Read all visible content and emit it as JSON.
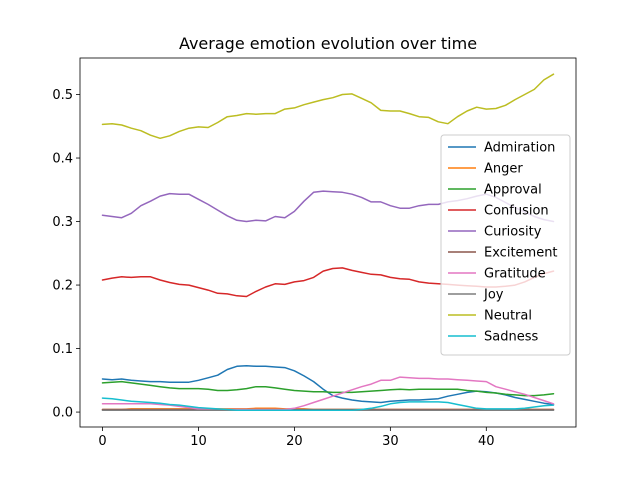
{
  "chart_data": {
    "type": "line",
    "title": "Average emotion evolution over time",
    "xlabel": "",
    "ylabel": "",
    "xlim": [
      -2.35,
      49.35
    ],
    "ylim": [
      -0.0235,
      0.5575
    ],
    "xticks": [
      0,
      10,
      20,
      30,
      40
    ],
    "yticks": [
      0.0,
      0.1,
      0.2,
      0.3,
      0.4,
      0.5
    ],
    "ytick_labels": [
      "0.0",
      "0.1",
      "0.2",
      "0.3",
      "0.4",
      "0.5"
    ],
    "grid": false,
    "legend_position": "center-right",
    "x": [
      0,
      1,
      2,
      3,
      4,
      5,
      6,
      7,
      8,
      9,
      10,
      11,
      12,
      13,
      14,
      15,
      16,
      17,
      18,
      19,
      20,
      21,
      22,
      23,
      24,
      25,
      26,
      27,
      28,
      29,
      30,
      31,
      32,
      33,
      34,
      35,
      36,
      37,
      38,
      39,
      40,
      41,
      42,
      43,
      44,
      45,
      46,
      47
    ],
    "series": [
      {
        "name": "Admiration",
        "color": "#1f77b4",
        "values": [
          0.052,
          0.051,
          0.052,
          0.05,
          0.049,
          0.048,
          0.048,
          0.047,
          0.047,
          0.047,
          0.05,
          0.054,
          0.058,
          0.067,
          0.072,
          0.073,
          0.072,
          0.072,
          0.071,
          0.07,
          0.065,
          0.057,
          0.048,
          0.036,
          0.026,
          0.022,
          0.019,
          0.017,
          0.016,
          0.015,
          0.017,
          0.018,
          0.019,
          0.019,
          0.02,
          0.021,
          0.025,
          0.028,
          0.031,
          0.033,
          0.032,
          0.03,
          0.027,
          0.023,
          0.02,
          0.017,
          0.014,
          0.012
        ]
      },
      {
        "name": "Anger",
        "color": "#ff7f0e",
        "values": [
          0.004,
          0.004,
          0.004,
          0.005,
          0.005,
          0.005,
          0.005,
          0.005,
          0.005,
          0.005,
          0.005,
          0.005,
          0.005,
          0.005,
          0.005,
          0.005,
          0.006,
          0.006,
          0.006,
          0.005,
          0.005,
          0.005,
          0.004,
          0.004,
          0.004,
          0.004,
          0.004,
          0.004,
          0.004,
          0.004,
          0.004,
          0.004,
          0.004,
          0.004,
          0.004,
          0.004,
          0.004,
          0.004,
          0.004,
          0.004,
          0.004,
          0.004,
          0.004,
          0.004,
          0.004,
          0.004,
          0.004,
          0.004
        ]
      },
      {
        "name": "Approval",
        "color": "#2ca02c",
        "values": [
          0.046,
          0.047,
          0.048,
          0.046,
          0.044,
          0.042,
          0.04,
          0.038,
          0.037,
          0.037,
          0.037,
          0.036,
          0.034,
          0.034,
          0.035,
          0.037,
          0.04,
          0.04,
          0.038,
          0.036,
          0.034,
          0.033,
          0.032,
          0.032,
          0.031,
          0.031,
          0.031,
          0.032,
          0.033,
          0.034,
          0.035,
          0.036,
          0.035,
          0.036,
          0.036,
          0.036,
          0.036,
          0.036,
          0.034,
          0.033,
          0.031,
          0.03,
          0.028,
          0.027,
          0.026,
          0.026,
          0.027,
          0.029
        ]
      },
      {
        "name": "Confusion",
        "color": "#d62728",
        "values": [
          0.208,
          0.211,
          0.213,
          0.212,
          0.213,
          0.213,
          0.208,
          0.204,
          0.201,
          0.2,
          0.196,
          0.192,
          0.187,
          0.186,
          0.183,
          0.182,
          0.19,
          0.197,
          0.202,
          0.201,
          0.205,
          0.207,
          0.212,
          0.222,
          0.226,
          0.227,
          0.223,
          0.22,
          0.217,
          0.216,
          0.212,
          0.21,
          0.209,
          0.205,
          0.203,
          0.202,
          0.201,
          0.2,
          0.199,
          0.198,
          0.197,
          0.197,
          0.198,
          0.2,
          0.205,
          0.212,
          0.218,
          0.222
        ]
      },
      {
        "name": "Curiosity",
        "color": "#9467bd",
        "values": [
          0.31,
          0.308,
          0.306,
          0.313,
          0.325,
          0.332,
          0.34,
          0.344,
          0.343,
          0.343,
          0.335,
          0.327,
          0.318,
          0.309,
          0.302,
          0.3,
          0.302,
          0.301,
          0.308,
          0.306,
          0.316,
          0.332,
          0.346,
          0.348,
          0.347,
          0.346,
          0.343,
          0.338,
          0.331,
          0.331,
          0.325,
          0.321,
          0.321,
          0.325,
          0.327,
          0.327,
          0.331,
          0.333,
          0.336,
          0.34,
          0.343,
          0.338,
          0.33,
          0.322,
          0.315,
          0.308,
          0.303,
          0.3
        ]
      },
      {
        "name": "Excitement",
        "color": "#8c564b",
        "values": [
          0.004,
          0.004,
          0.004,
          0.004,
          0.004,
          0.004,
          0.004,
          0.004,
          0.004,
          0.004,
          0.004,
          0.004,
          0.004,
          0.004,
          0.004,
          0.004,
          0.004,
          0.004,
          0.004,
          0.004,
          0.004,
          0.004,
          0.004,
          0.004,
          0.004,
          0.004,
          0.004,
          0.004,
          0.004,
          0.004,
          0.004,
          0.004,
          0.004,
          0.004,
          0.004,
          0.004,
          0.004,
          0.004,
          0.004,
          0.004,
          0.004,
          0.004,
          0.004,
          0.004,
          0.004,
          0.004,
          0.004,
          0.004
        ]
      },
      {
        "name": "Gratitude",
        "color": "#e377c2",
        "values": [
          0.013,
          0.013,
          0.013,
          0.013,
          0.013,
          0.013,
          0.012,
          0.011,
          0.009,
          0.007,
          0.005,
          0.004,
          0.004,
          0.004,
          0.004,
          0.004,
          0.004,
          0.004,
          0.004,
          0.004,
          0.006,
          0.01,
          0.015,
          0.02,
          0.025,
          0.03,
          0.035,
          0.04,
          0.044,
          0.05,
          0.05,
          0.055,
          0.054,
          0.053,
          0.053,
          0.052,
          0.052,
          0.051,
          0.05,
          0.049,
          0.048,
          0.04,
          0.036,
          0.032,
          0.028,
          0.023,
          0.018,
          0.013
        ]
      },
      {
        "name": "Joy",
        "color": "#7f7f7f",
        "values": [
          0.003,
          0.003,
          0.003,
          0.003,
          0.003,
          0.003,
          0.003,
          0.003,
          0.003,
          0.003,
          0.003,
          0.003,
          0.003,
          0.003,
          0.003,
          0.003,
          0.003,
          0.003,
          0.003,
          0.003,
          0.003,
          0.003,
          0.003,
          0.003,
          0.003,
          0.003,
          0.003,
          0.003,
          0.003,
          0.003,
          0.003,
          0.003,
          0.003,
          0.003,
          0.003,
          0.003,
          0.003,
          0.003,
          0.003,
          0.003,
          0.003,
          0.003,
          0.003,
          0.003,
          0.003,
          0.003,
          0.003,
          0.003
        ]
      },
      {
        "name": "Neutral",
        "color": "#bcbd22",
        "values": [
          0.453,
          0.454,
          0.452,
          0.447,
          0.443,
          0.436,
          0.431,
          0.435,
          0.442,
          0.447,
          0.449,
          0.448,
          0.456,
          0.465,
          0.467,
          0.47,
          0.469,
          0.47,
          0.47,
          0.477,
          0.479,
          0.484,
          0.488,
          0.492,
          0.495,
          0.5,
          0.501,
          0.494,
          0.487,
          0.475,
          0.474,
          0.474,
          0.47,
          0.465,
          0.464,
          0.457,
          0.454,
          0.465,
          0.474,
          0.48,
          0.477,
          0.478,
          0.483,
          0.492,
          0.5,
          0.508,
          0.523,
          0.532
        ]
      },
      {
        "name": "Sadness",
        "color": "#17becf",
        "values": [
          0.022,
          0.021,
          0.019,
          0.017,
          0.016,
          0.015,
          0.014,
          0.012,
          0.011,
          0.009,
          0.007,
          0.006,
          0.005,
          0.004,
          0.003,
          0.003,
          0.003,
          0.003,
          0.003,
          0.003,
          0.003,
          0.003,
          0.003,
          0.003,
          0.003,
          0.003,
          0.003,
          0.004,
          0.006,
          0.009,
          0.013,
          0.015,
          0.016,
          0.016,
          0.016,
          0.016,
          0.015,
          0.012,
          0.009,
          0.006,
          0.005,
          0.005,
          0.005,
          0.005,
          0.006,
          0.008,
          0.01,
          0.011
        ]
      }
    ]
  }
}
